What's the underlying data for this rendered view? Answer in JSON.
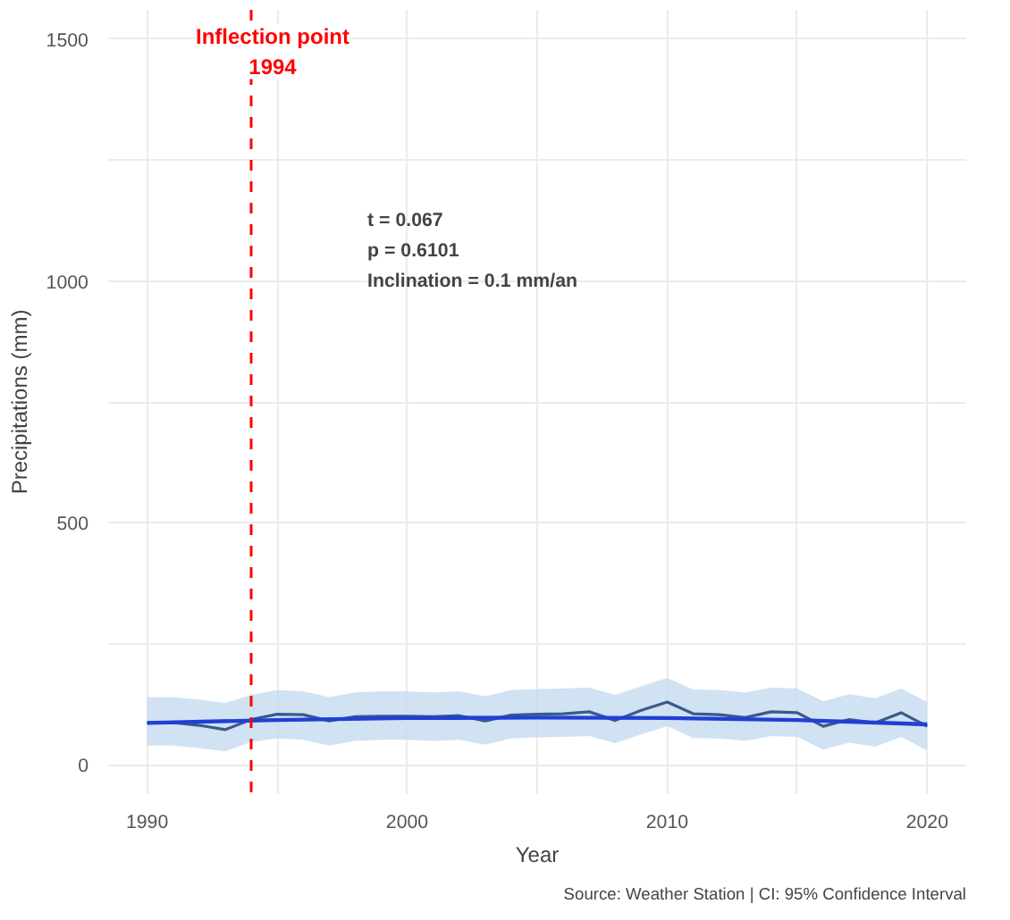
{
  "chart_data": {
    "type": "line",
    "xlabel": "Year",
    "ylabel": "Precipitations (mm)",
    "xlim": [
      1988.5,
      2021.5
    ],
    "ylim": [
      -60,
      1560
    ],
    "xticks": [
      1990,
      {
        "value": 1995,
        "label": null
      },
      2000,
      {
        "value": 2005,
        "label": null
      },
      2010,
      {
        "value": 2015,
        "label": null
      },
      2020
    ],
    "yticks": [
      0,
      {
        "value": 250,
        "label": null
      },
      500,
      {
        "value": 750,
        "label": null
      },
      1000,
      {
        "value": 1250,
        "label": null
      },
      1500
    ],
    "grid": true,
    "series": [
      {
        "color": "#3a5a8c",
        "x": [
          1990,
          1991,
          1992,
          1993,
          1994,
          1995,
          1996,
          1997,
          1998,
          1999,
          2000,
          2001,
          2002,
          2003,
          2004,
          2005,
          2006,
          2007,
          2008,
          2009,
          2010,
          2011,
          2012,
          2013,
          2014,
          2015,
          2016,
          2017,
          2018,
          2019,
          2020
        ],
        "values": [
          87,
          88,
          82,
          73,
          94,
          105,
          104,
          91,
          100,
          101,
          101,
          100,
          102,
          91,
          103,
          105,
          106,
          110,
          92,
          113,
          130,
          106,
          104,
          98,
          110,
          108,
          80,
          94,
          87,
          108,
          80
        ],
        "lower": [
          40,
          40,
          35,
          28,
          48,
          55,
          52,
          40,
          50,
          52,
          52,
          50,
          52,
          42,
          55,
          57,
          58,
          60,
          45,
          63,
          80,
          56,
          55,
          50,
          60,
          58,
          32,
          46,
          38,
          58,
          30
        ],
        "upper": [
          140,
          140,
          135,
          128,
          145,
          155,
          152,
          140,
          150,
          152,
          152,
          150,
          152,
          142,
          155,
          157,
          158,
          160,
          145,
          163,
          180,
          156,
          155,
          150,
          160,
          158,
          132,
          146,
          138,
          158,
          130
        ]
      },
      {
        "color": "#1f3fd6",
        "x": [
          1990,
          1995,
          2000,
          2005,
          2010,
          2015,
          2020
        ],
        "values": [
          87,
          93,
          97,
          98,
          97,
          93,
          84
        ]
      }
    ],
    "ref_lines": [
      {
        "axis": "x",
        "value": 1994,
        "label": "Inflection point\n1994",
        "color": "#ff0000",
        "line_style": "dashed"
      }
    ],
    "annotations": [
      "t = 0.067",
      "p = 0.6101",
      "Inclination = 0.1 mm/an",
      "Source: Weather Station | CI: 95% Confidence Interval"
    ]
  }
}
